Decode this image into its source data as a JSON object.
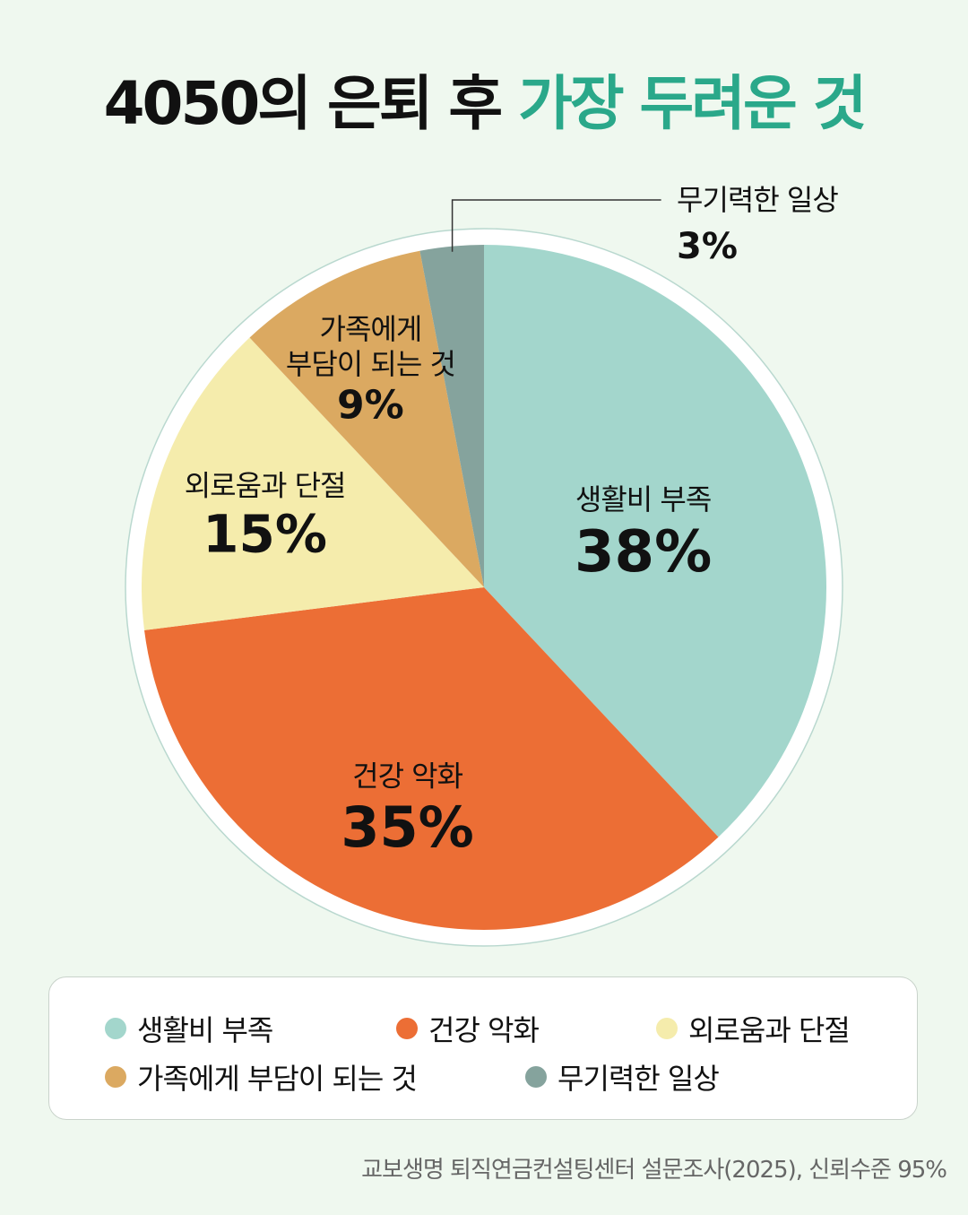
{
  "title": {
    "part1": "4050의 은퇴 후",
    "part2": "가장 두려운 것"
  },
  "chart_data": {
    "type": "pie",
    "title": "4050의 은퇴 후 가장 두려운 것",
    "slices": [
      {
        "label": "생활비 부족",
        "value": 38,
        "value_label": "38%",
        "color": "#a3d6cc"
      },
      {
        "label": "건강 악화",
        "value": 35,
        "value_label": "35%",
        "color": "#ec6e35"
      },
      {
        "label": "외로움과 단절",
        "value": 15,
        "value_label": "15%",
        "color": "#f5ecac"
      },
      {
        "label": "가족에게 부담이 되는 것",
        "label_lines": [
          "가족에게",
          "부담이 되는 것"
        ],
        "value": 9,
        "value_label": "9%",
        "color": "#dba961"
      },
      {
        "label": "무기력한 일상",
        "value": 3,
        "value_label": "3%",
        "color": "#85a39d"
      }
    ],
    "legend_position": "bottom"
  },
  "legend": {
    "items": [
      {
        "label": "생활비 부족",
        "color": "#a3d6cc"
      },
      {
        "label": "건강 악화",
        "color": "#ec6e35"
      },
      {
        "label": "외로움과 단절",
        "color": "#f5ecac"
      },
      {
        "label": "가족에게 부담이 되는 것",
        "color": "#dba961"
      },
      {
        "label": "무기력한 일상",
        "color": "#85a39d"
      }
    ]
  },
  "source": "교보생명 퇴직연금컨설팅센터 설문조사(2025), 신뢰수준 95%"
}
